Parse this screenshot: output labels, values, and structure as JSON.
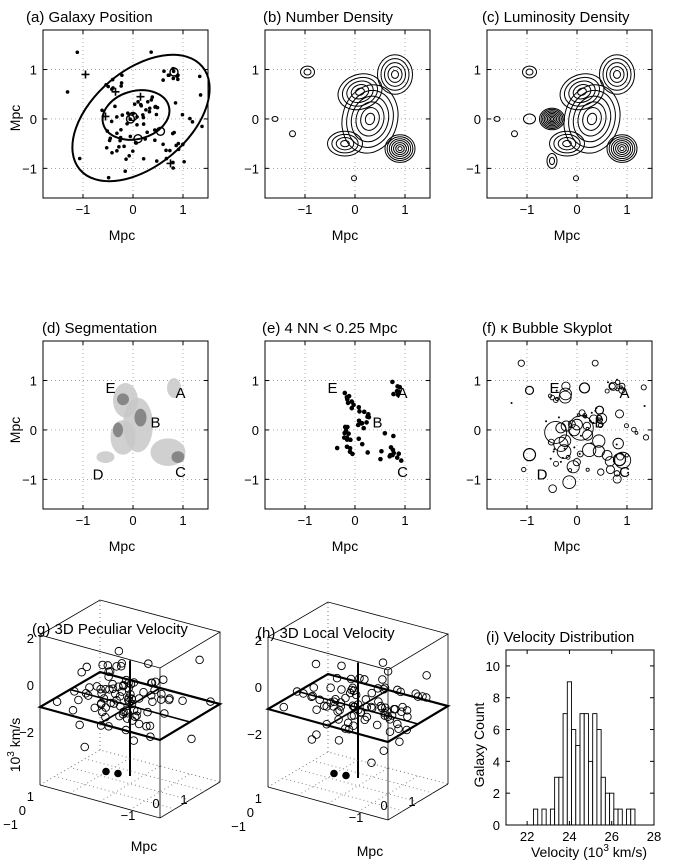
{
  "colors": {
    "ink": "#000000",
    "grid": "#888888",
    "seg_light": "#c8c8c8",
    "seg_dark": "#7a7a7a",
    "bg": "#ffffff"
  },
  "panels": {
    "a": {
      "title": "(a)  Galaxy  Position",
      "xlabel": "Mpc",
      "ylabel": "Mpc"
    },
    "b": {
      "title": "(b)  Number Density",
      "xlabel": "Mpc"
    },
    "c": {
      "title": "(c)  Luminosity Density",
      "xlabel": "Mpc"
    },
    "d": {
      "title": "(d)  Segmentation",
      "xlabel": "Mpc",
      "ylabel": "Mpc"
    },
    "e": {
      "title": "(e)  4 NN < 0.25 Mpc",
      "xlabel": "Mpc"
    },
    "f": {
      "title": "(f)  κ Bubble Skyplot",
      "xlabel": "Mpc"
    },
    "g": {
      "title": "(g)  3D Peculiar Velocity",
      "xlabel": "Mpc",
      "ylabel_base": "10",
      "ylabel_exp": "3",
      "ylabel_rest": " km/s"
    },
    "h": {
      "title": "(h)  3D Local Velocity",
      "xlabel": "Mpc"
    },
    "i": {
      "title": "(i) Velocity Distribution",
      "xlabel_a": "Velocity (10",
      "xlabel_exp": "3",
      "xlabel_b": " km/s)",
      "ylabel": "Galaxy Count"
    }
  },
  "xticks": [
    "−1",
    "0",
    "1"
  ],
  "yticks": [
    "1",
    "0",
    "−1"
  ],
  "ticks3d": {
    "z": [
      "2",
      "0",
      "−2"
    ],
    "y": [
      "1",
      "0",
      "−1"
    ],
    "x": [
      "−1",
      "0",
      "1"
    ]
  },
  "groups": [
    "A",
    "B",
    "C",
    "D",
    "E"
  ],
  "chart_data": {
    "type": "bar",
    "title": "(i) Velocity Distribution",
    "xlabel": "Velocity (10^3 km/s)",
    "ylabel": "Galaxy Count",
    "xlim": [
      21,
      28
    ],
    "ylim": [
      0,
      11
    ],
    "xticks": [
      22,
      24,
      26,
      28
    ],
    "yticks": [
      0,
      2,
      4,
      6,
      8,
      10
    ],
    "bin_edges": [
      22.3,
      22.5,
      22.7,
      22.9,
      23.1,
      23.3,
      23.5,
      23.7,
      23.9,
      24.1,
      24.3,
      24.5,
      24.7,
      24.9,
      25.1,
      25.3,
      25.5,
      25.7,
      25.9,
      26.1,
      26.3,
      26.5,
      26.7,
      26.9,
      27.1
    ],
    "values": [
      1,
      0,
      1,
      0,
      1,
      3,
      3,
      7,
      9,
      6,
      5,
      7,
      7,
      4,
      7,
      6,
      3,
      2,
      2,
      1,
      1,
      0,
      1,
      1
    ]
  }
}
